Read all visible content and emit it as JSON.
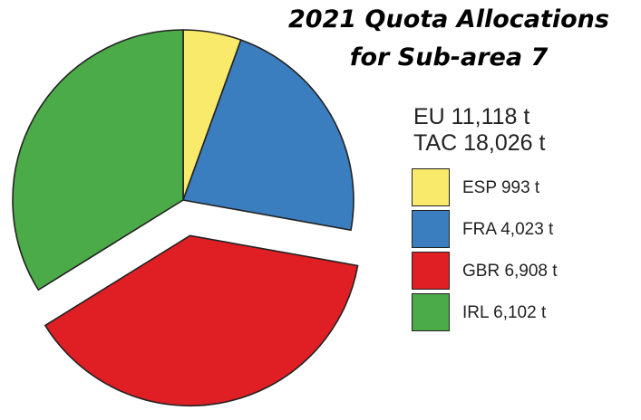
{
  "title": {
    "line1": "2021 Quota Allocations",
    "line2": "for Sub-area 7"
  },
  "summary": {
    "eu": "EU 11,118 t",
    "tac": "TAC 18,026 t"
  },
  "colors": {
    "ESP": "#f9ea6b",
    "FRA": "#3a7ebf",
    "GBR": "#e01f24",
    "IRL": "#4aab48",
    "outline": "#222222"
  },
  "legend": [
    {
      "label": "ESP 993 t",
      "color": "#f9ea6b"
    },
    {
      "label": "FRA 4,023 t",
      "color": "#3a7ebf"
    },
    {
      "label": "GBR 6,908 t",
      "color": "#e01f24"
    },
    {
      "label": "IRL 6,102 t",
      "color": "#4aab48"
    }
  ],
  "chart_data": {
    "type": "pie",
    "title": "2021 Quota Allocations for Sub-area 7",
    "unit": "t",
    "categories": [
      "ESP",
      "FRA",
      "GBR",
      "IRL"
    ],
    "values": [
      993,
      4023,
      6908,
      6102
    ],
    "exploded": [
      "GBR"
    ],
    "legend_position": "right"
  }
}
